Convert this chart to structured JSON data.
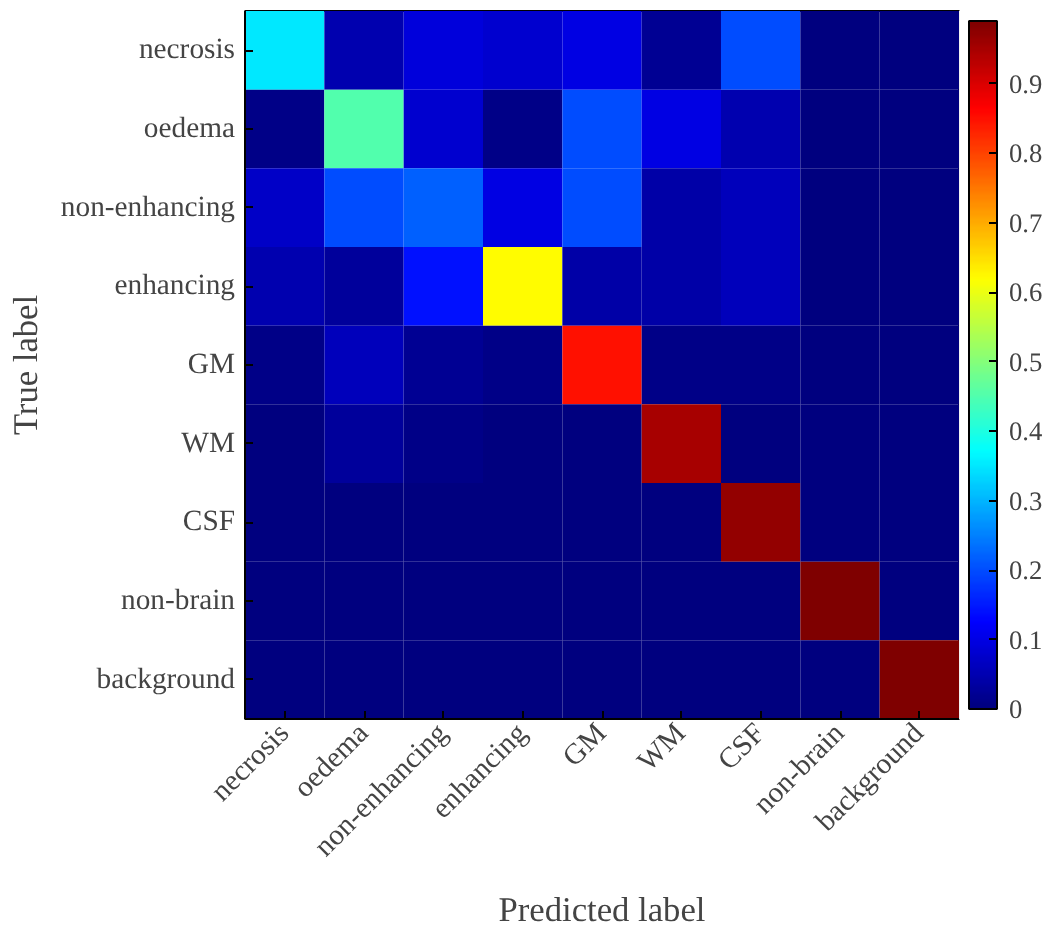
{
  "chart_data": {
    "type": "heatmap",
    "xlabel": "Predicted label",
    "ylabel": "True label",
    "categories": [
      "necrosis",
      "oedema",
      "non-enhancing",
      "enhancing",
      "GM",
      "WM",
      "CSF",
      "non-brain",
      "background"
    ],
    "y_categories": [
      "necrosis",
      "oedema",
      "non-enhancing",
      "enhancing",
      "GM",
      "WM",
      "CSF",
      "non-brain",
      "background"
    ],
    "cells": [
      [
        0.35,
        0.05,
        0.09,
        0.08,
        0.1,
        0.02,
        0.2,
        0.0,
        0.0
      ],
      [
        0.01,
        0.45,
        0.08,
        0.01,
        0.2,
        0.1,
        0.05,
        0.0,
        0.0
      ],
      [
        0.07,
        0.2,
        0.22,
        0.1,
        0.2,
        0.04,
        0.06,
        0.0,
        0.0
      ],
      [
        0.05,
        0.03,
        0.14,
        0.62,
        0.04,
        0.04,
        0.06,
        0.0,
        0.0
      ],
      [
        0.01,
        0.06,
        0.02,
        0.01,
        0.85,
        0.01,
        0.01,
        0.0,
        0.0
      ],
      [
        0.0,
        0.03,
        0.01,
        0.0,
        0.0,
        0.95,
        0.0,
        0.0,
        0.0
      ],
      [
        0.0,
        0.0,
        0.0,
        0.0,
        0.0,
        0.0,
        0.97,
        0.0,
        0.0
      ],
      [
        0.0,
        0.0,
        0.0,
        0.0,
        0.0,
        0.0,
        0.0,
        0.99,
        0.0
      ],
      [
        0.0,
        0.0,
        0.0,
        0.0,
        0.0,
        0.0,
        0.0,
        0.0,
        0.99
      ]
    ],
    "clim": [
      0,
      0.99
    ],
    "cticks": [
      0,
      0.1,
      0.2,
      0.3,
      0.4,
      0.5,
      0.6,
      0.7,
      0.8,
      0.9
    ]
  }
}
